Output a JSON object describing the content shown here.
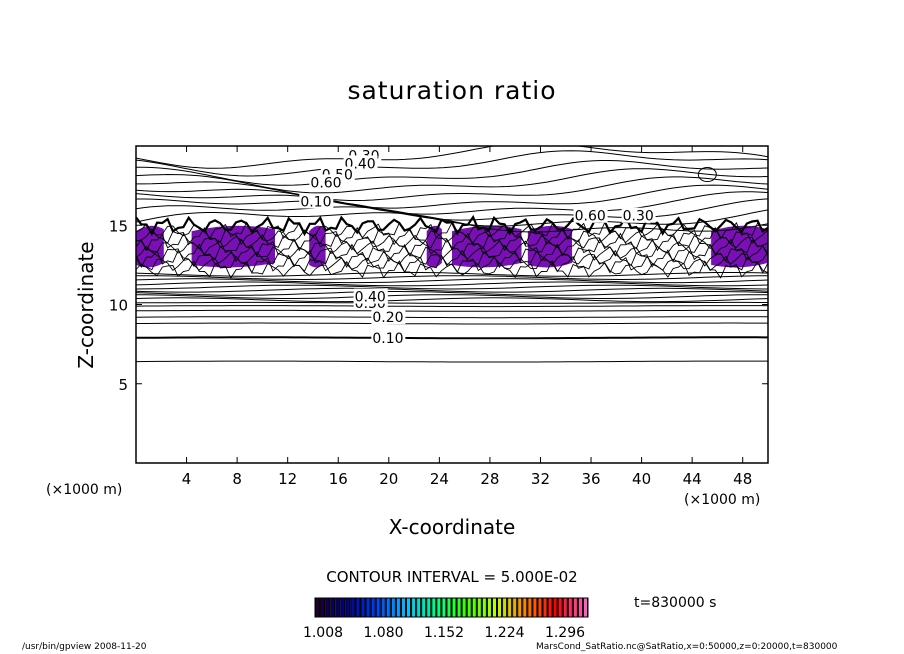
{
  "chart_data": {
    "type": "contour",
    "title": "saturation ratio",
    "xlabel": "X-coordinate",
    "ylabel": "Z-coordinate",
    "x_unit": "(×1000 m)",
    "y_unit": "(×1000 m)",
    "xlim": [
      0,
      50
    ],
    "ylim": [
      0,
      20
    ],
    "x_ticks": [
      4,
      8,
      12,
      16,
      20,
      24,
      28,
      32,
      36,
      40,
      44,
      48
    ],
    "y_ticks": [
      5,
      10,
      15
    ],
    "contour_interval_text": "CONTOUR INTERVAL = 5.000E-02",
    "time_text": "t=830000 s",
    "contour_levels": [
      {
        "label": "0.10",
        "z": 7.9
      },
      {
        "label": "0.20",
        "z": 9.2
      },
      {
        "label": "0.30",
        "z": 10.1
      },
      {
        "label": "0.40",
        "z": 10.5
      },
      {
        "label": "0.30",
        "z": 19.4
      },
      {
        "label": "0.40",
        "z": 18.9
      },
      {
        "label": "0.50",
        "z": 18.2
      },
      {
        "label": "0.60",
        "z": 17.7
      },
      {
        "label": "0.10",
        "z": 16.5
      },
      {
        "label": "0.60",
        "z": 15.6
      },
      {
        "label": "0.30",
        "z": 15.6
      }
    ],
    "shaded_regions_z": [
      12.5,
      15.0
    ],
    "colorbar": {
      "tick_labels": [
        "1.008",
        "1.080",
        "1.152",
        "1.224",
        "1.296"
      ],
      "colors": [
        "#1a0033",
        "#00008b",
        "#0040ff",
        "#00c0ff",
        "#00ff80",
        "#40ff00",
        "#c0ff00",
        "#ff8000",
        "#ff0000",
        "#ff60c0"
      ]
    }
  },
  "footer": {
    "left": "/usr/bin/gpview   2008-11-20",
    "right": "MarsCond_SatRatio.nc@SatRatio,x=0:50000,z=0:20000,t=830000"
  }
}
